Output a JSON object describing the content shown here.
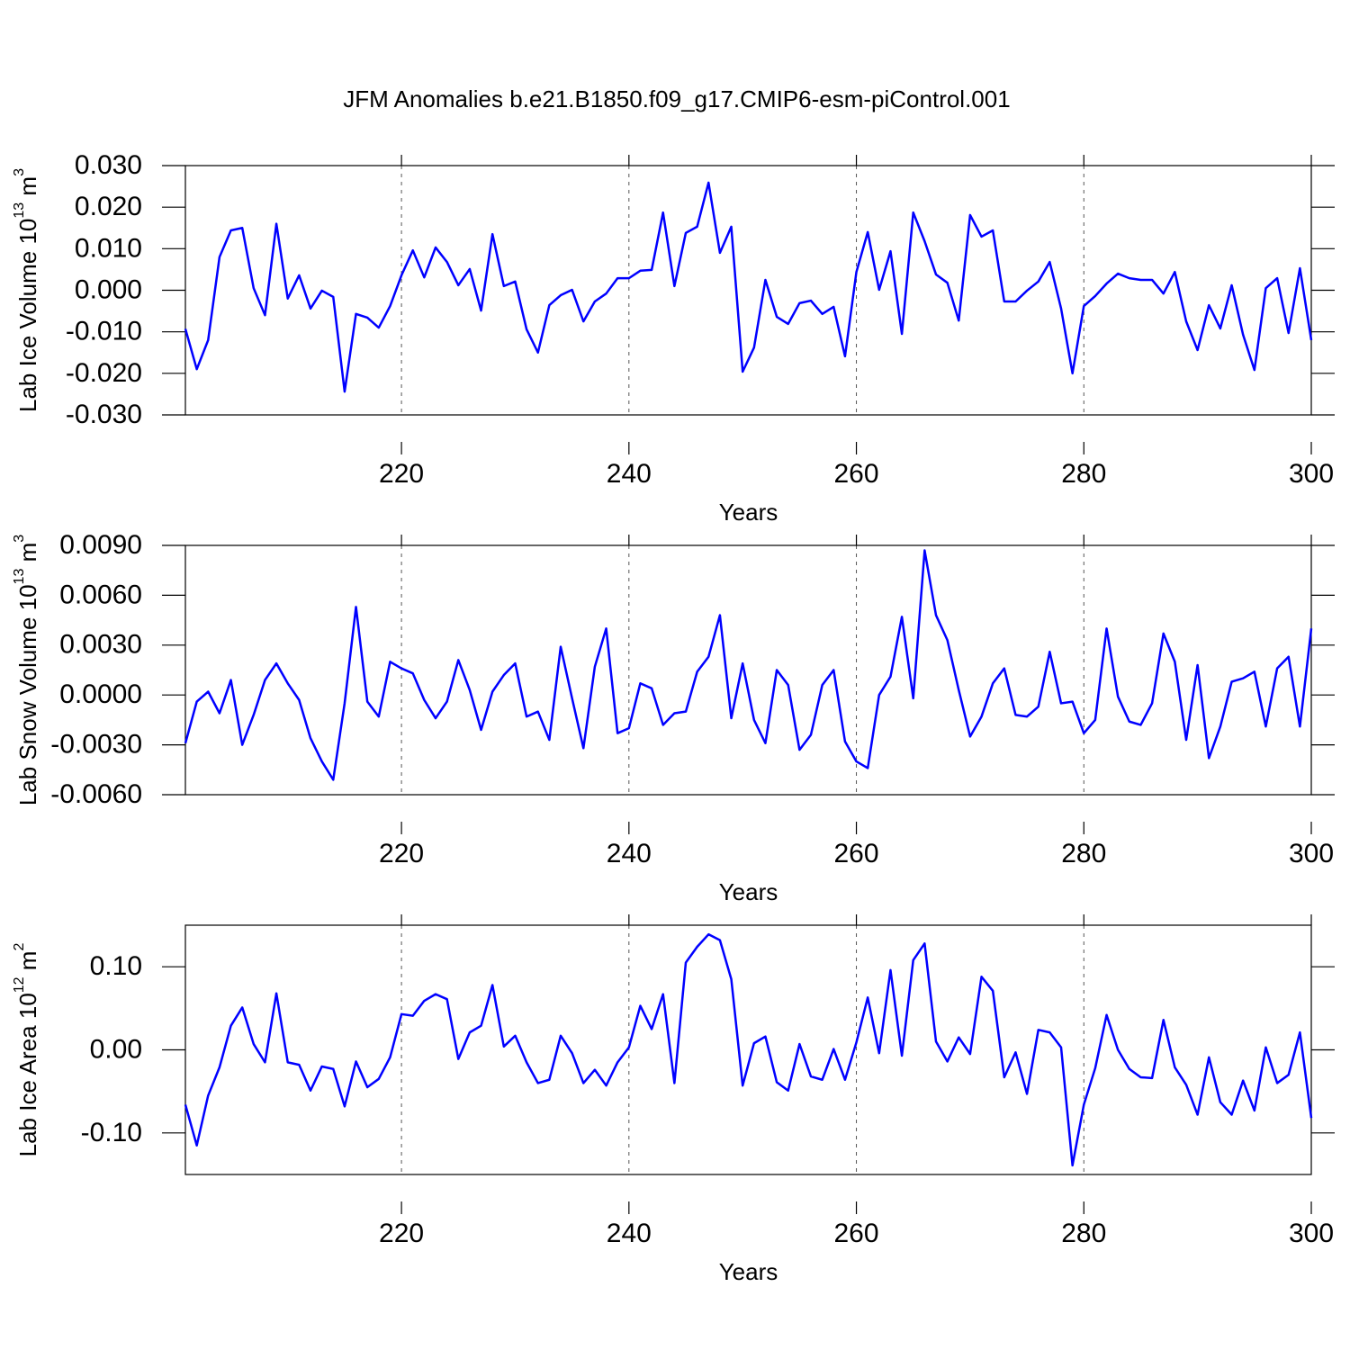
{
  "title": "JFM Anomalies b.e21.B1850.f09_g17.CMIP6-esm-piControl.001",
  "chart_data": [
    {
      "type": "line",
      "ylabel": [
        "Lab Ice Volume 10",
        "13",
        " m",
        "3"
      ],
      "xlabel": "Years",
      "color": "#0000ff",
      "xgrid": true,
      "xlim": [
        201,
        300
      ],
      "xticks": [
        220,
        240,
        260,
        280,
        300
      ],
      "ylim": [
        -0.03,
        0.03
      ],
      "yticks": [
        {
          "value": -0.03,
          "label": "-0.030"
        },
        {
          "value": -0.02,
          "label": "-0.020"
        },
        {
          "value": -0.01,
          "label": "-0.010"
        },
        {
          "value": 0,
          "label": "0.000"
        },
        {
          "value": 0.01,
          "label": "0.010"
        },
        {
          "value": 0.02,
          "label": "0.020"
        },
        {
          "value": 0.03,
          "label": "0.030"
        }
      ],
      "x": [
        201,
        202,
        203,
        204,
        205,
        206,
        207,
        208,
        209,
        210,
        211,
        212,
        213,
        214,
        215,
        216,
        217,
        218,
        219,
        220,
        221,
        222,
        223,
        224,
        225,
        226,
        227,
        228,
        229,
        230,
        231,
        232,
        233,
        234,
        235,
        236,
        237,
        238,
        239,
        240,
        241,
        242,
        243,
        244,
        245,
        246,
        247,
        248,
        249,
        250,
        251,
        252,
        253,
        254,
        255,
        256,
        257,
        258,
        259,
        260,
        261,
        262,
        263,
        264,
        265,
        266,
        267,
        268,
        269,
        270,
        271,
        272,
        273,
        274,
        275,
        276,
        277,
        278,
        279,
        280,
        281,
        282,
        283,
        284,
        285,
        286,
        287,
        288,
        289,
        290,
        291,
        292,
        293,
        294,
        295,
        296,
        297,
        298,
        299,
        300
      ],
      "values": [
        -0.0093,
        -0.019,
        -0.012,
        0.008,
        0.0144,
        0.015,
        0.0005,
        -0.006,
        0.016,
        -0.002,
        0.0036,
        -0.0044,
        -0.0001,
        -0.0016,
        -0.0244,
        -0.0057,
        -0.0066,
        -0.009,
        -0.0038,
        0.0036,
        0.0096,
        0.0031,
        0.0103,
        0.0068,
        0.0012,
        0.0051,
        -0.0049,
        0.0135,
        0.001,
        0.0021,
        -0.0094,
        -0.015,
        -0.0036,
        -0.0012,
        0.0001,
        -0.0075,
        -0.0027,
        -0.0008,
        0.0029,
        0.0029,
        0.0047,
        0.0049,
        0.0187,
        0.001,
        0.0138,
        0.0153,
        0.0259,
        0.009,
        0.0153,
        -0.0196,
        -0.0138,
        0.0025,
        -0.0064,
        -0.0081,
        -0.0031,
        -0.0025,
        -0.0057,
        -0.004,
        -0.0159,
        0.0044,
        0.014,
        0.0001,
        0.0094,
        -0.0105,
        0.0187,
        0.0118,
        0.0038,
        0.0018,
        -0.0073,
        0.0181,
        0.0129,
        0.0144,
        -0.0027,
        -0.0027,
        -0.0001,
        0.0021,
        0.0068,
        -0.0044,
        -0.02,
        -0.0038,
        -0.0014,
        0.0016,
        0.004,
        0.0029,
        0.0025,
        0.0025,
        -0.0008,
        0.0044,
        -0.0075,
        -0.0144,
        -0.0036,
        -0.0092,
        0.0012,
        -0.0107,
        -0.0192,
        0.0005,
        0.0029,
        -0.0103,
        0.0053,
        -0.012
      ]
    },
    {
      "type": "line",
      "ylabel": [
        "Lab Snow Volume 10",
        "13",
        " m",
        "3"
      ],
      "xlabel": "Years",
      "color": "#0000ff",
      "xgrid": true,
      "xlim": [
        201,
        300
      ],
      "xticks": [
        220,
        240,
        260,
        280,
        300
      ],
      "ylim": [
        -0.006,
        0.009
      ],
      "yticks": [
        {
          "value": -0.006,
          "label": "-0.0060"
        },
        {
          "value": -0.003,
          "label": "-0.0030"
        },
        {
          "value": 0,
          "label": "0.0000"
        },
        {
          "value": 0.003,
          "label": "0.0030"
        },
        {
          "value": 0.006,
          "label": "0.0060"
        },
        {
          "value": 0.009,
          "label": "0.0090"
        }
      ],
      "x": [
        201,
        202,
        203,
        204,
        205,
        206,
        207,
        208,
        209,
        210,
        211,
        212,
        213,
        214,
        215,
        216,
        217,
        218,
        219,
        220,
        221,
        222,
        223,
        224,
        225,
        226,
        227,
        228,
        229,
        230,
        231,
        232,
        233,
        234,
        235,
        236,
        237,
        238,
        239,
        240,
        241,
        242,
        243,
        244,
        245,
        246,
        247,
        248,
        249,
        250,
        251,
        252,
        253,
        254,
        255,
        256,
        257,
        258,
        259,
        260,
        261,
        262,
        263,
        264,
        265,
        266,
        267,
        268,
        269,
        270,
        271,
        272,
        273,
        274,
        275,
        276,
        277,
        278,
        279,
        280,
        281,
        282,
        283,
        284,
        285,
        286,
        287,
        288,
        289,
        290,
        291,
        292,
        293,
        294,
        295,
        296,
        297,
        298,
        299,
        300
      ],
      "values": [
        -0.0029,
        -0.0004,
        0.0002,
        -0.0011,
        0.0009,
        -0.003,
        -0.0012,
        0.0009,
        0.0019,
        0.0007,
        -0.0003,
        -0.0026,
        -0.004,
        -0.0051,
        -0.0005,
        0.0053,
        -0.0004,
        -0.0013,
        0.002,
        0.0016,
        0.0013,
        -0.0003,
        -0.0014,
        -0.0004,
        0.0021,
        0.0003,
        -0.0021,
        0.0002,
        0.0012,
        0.0019,
        -0.0013,
        -0.001,
        -0.0027,
        0.0029,
        -0.0002,
        -0.0032,
        0.0017,
        0.004,
        -0.0023,
        -0.002,
        0.0007,
        0.0004,
        -0.0018,
        -0.0011,
        -0.001,
        0.0014,
        0.0023,
        0.0048,
        -0.0014,
        0.0019,
        -0.0015,
        -0.0029,
        0.0015,
        0.0006,
        -0.0033,
        -0.0024,
        0.0006,
        0.0015,
        -0.0028,
        -0.004,
        -0.0044,
        0.0,
        0.0011,
        0.0047,
        -0.0002,
        0.0087,
        0.0048,
        0.0033,
        0.0003,
        -0.0025,
        -0.0013,
        0.0007,
        0.0016,
        -0.0012,
        -0.0013,
        -0.0007,
        0.0026,
        -0.0005,
        -0.0004,
        -0.0023,
        -0.0015,
        0.004,
        -0.0001,
        -0.0016,
        -0.0018,
        -0.0005,
        0.0037,
        0.002,
        -0.0027,
        0.0018,
        -0.0038,
        -0.0019,
        0.0008,
        0.001,
        0.0014,
        -0.0019,
        0.0016,
        0.0023,
        -0.0019,
        0.004
      ]
    },
    {
      "type": "line",
      "ylabel": [
        "Lab Ice Area 10",
        "12",
        " m",
        "2"
      ],
      "xlabel": "Years",
      "color": "#0000ff",
      "xgrid": true,
      "xlim": [
        201,
        300
      ],
      "xticks": [
        220,
        240,
        260,
        280,
        300
      ],
      "ylim": [
        -0.15,
        0.15
      ],
      "yticks": [
        {
          "value": -0.1,
          "label": "-0.10"
        },
        {
          "value": 0,
          "label": "0.00"
        },
        {
          "value": 0.1,
          "label": "0.10"
        }
      ],
      "x": [
        201,
        202,
        203,
        204,
        205,
        206,
        207,
        208,
        209,
        210,
        211,
        212,
        213,
        214,
        215,
        216,
        217,
        218,
        219,
        220,
        221,
        222,
        223,
        224,
        225,
        226,
        227,
        228,
        229,
        230,
        231,
        232,
        233,
        234,
        235,
        236,
        237,
        238,
        239,
        240,
        241,
        242,
        243,
        244,
        245,
        246,
        247,
        248,
        249,
        250,
        251,
        252,
        253,
        254,
        255,
        256,
        257,
        258,
        259,
        260,
        261,
        262,
        263,
        264,
        265,
        266,
        267,
        268,
        269,
        270,
        271,
        272,
        273,
        274,
        275,
        276,
        277,
        278,
        279,
        280,
        281,
        282,
        283,
        284,
        285,
        286,
        287,
        288,
        289,
        290,
        291,
        292,
        293,
        294,
        295,
        296,
        297,
        298,
        299,
        300
      ],
      "values": [
        -0.066,
        -0.115,
        -0.055,
        -0.021,
        0.029,
        0.051,
        0.007,
        -0.015,
        0.068,
        -0.015,
        -0.018,
        -0.049,
        -0.02,
        -0.023,
        -0.068,
        -0.014,
        -0.045,
        -0.035,
        -0.009,
        0.043,
        0.041,
        0.059,
        0.067,
        0.061,
        -0.011,
        0.021,
        0.029,
        0.078,
        0.004,
        0.017,
        -0.015,
        -0.04,
        -0.036,
        0.017,
        -0.004,
        -0.04,
        -0.024,
        -0.043,
        -0.015,
        0.003,
        0.053,
        0.025,
        0.067,
        -0.04,
        0.105,
        0.124,
        0.139,
        0.132,
        0.085,
        -0.043,
        0.008,
        0.016,
        -0.039,
        -0.049,
        0.007,
        -0.032,
        -0.036,
        0.001,
        -0.036,
        0.009,
        0.063,
        -0.004,
        0.096,
        -0.007,
        0.108,
        0.128,
        0.01,
        -0.014,
        0.015,
        -0.005,
        0.088,
        0.071,
        -0.033,
        -0.003,
        -0.053,
        0.024,
        0.021,
        0.003,
        -0.139,
        -0.066,
        -0.022,
        0.042,
        0.0,
        -0.023,
        -0.033,
        -0.034,
        0.036,
        -0.021,
        -0.042,
        -0.078,
        -0.009,
        -0.063,
        -0.078,
        -0.037,
        -0.073,
        0.003,
        -0.04,
        -0.03,
        0.021,
        -0.082
      ]
    }
  ]
}
